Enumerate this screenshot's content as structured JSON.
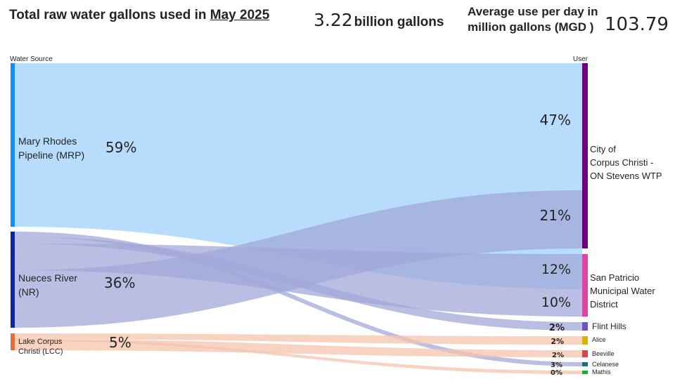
{
  "header": {
    "title_prefix": "Total raw water gallons used in",
    "title_period": "May 2025",
    "total_value": "3.22",
    "total_unit": "billion gallons",
    "avg_label": "Average use per day in million gallons (MGD )",
    "avg_value": "103.79"
  },
  "chart_data": {
    "type": "sankey",
    "left_axis_label": "Water Source",
    "right_axis_label": "User",
    "sources": [
      {
        "id": "mrp",
        "label_lines": [
          "Mary Rhodes",
          "Pipeline (MRP)"
        ],
        "pct_label": "59%",
        "share": 59,
        "color": "#118dff",
        "link_color": "#9fd0fb"
      },
      {
        "id": "nr",
        "label_lines": [
          "Nueces River",
          "(NR)"
        ],
        "pct_label": "36%",
        "share": 36,
        "color": "#12239e",
        "link_color": "#a2a8d8"
      },
      {
        "id": "lcc",
        "label_lines": [
          "Lake Corpus",
          "Christi (LCC)"
        ],
        "pct_label": "5%",
        "share": 5,
        "color": "#e66c37",
        "link_color": "#f5c4ae"
      }
    ],
    "users": [
      {
        "id": "occ",
        "label_lines": [
          "City of",
          "Corpus Christi -",
          "ON Stevens WTP"
        ],
        "color": "#6b007b",
        "link_share": 68
      },
      {
        "id": "sp",
        "label_lines": [
          "San Patricio",
          "Municipal Water",
          "District"
        ],
        "color": "#e044a7",
        "link_share": 22
      },
      {
        "id": "fh",
        "label_lines": [
          "Flint Hills"
        ],
        "color": "#744ec2",
        "link_share": 2
      },
      {
        "id": "alice",
        "label_lines": [
          "Alice"
        ],
        "color": "#d9b300",
        "link_share": 2
      },
      {
        "id": "beeville",
        "label_lines": [
          "Beeville"
        ],
        "color": "#d64550",
        "link_share": 2
      },
      {
        "id": "celanese",
        "label_lines": [
          "Celanese"
        ],
        "color": "#197278",
        "link_share": 3
      },
      {
        "id": "mathis",
        "label_lines": [
          "Mathis"
        ],
        "color": "#1aab40",
        "link_share": 0
      }
    ],
    "links": [
      {
        "source": "mrp",
        "target": "occ",
        "share": 47,
        "label": "47%"
      },
      {
        "source": "mrp",
        "target": "sp",
        "share": 12,
        "label": "12%"
      },
      {
        "source": "nr",
        "target": "occ",
        "share": 21,
        "label": "21%"
      },
      {
        "source": "nr",
        "target": "sp",
        "share": 10,
        "label": "10%"
      },
      {
        "source": "nr",
        "target": "fh",
        "share": 2,
        "label": "2%"
      },
      {
        "source": "nr",
        "target": "celanese",
        "share": 3,
        "label": "3%"
      },
      {
        "source": "lcc",
        "target": "alice",
        "share": 2,
        "label": "2%"
      },
      {
        "source": "lcc",
        "target": "beeville",
        "share": 2,
        "label": "2%"
      },
      {
        "source": "lcc",
        "target": "mathis",
        "share": 0,
        "label": "0%"
      }
    ]
  }
}
